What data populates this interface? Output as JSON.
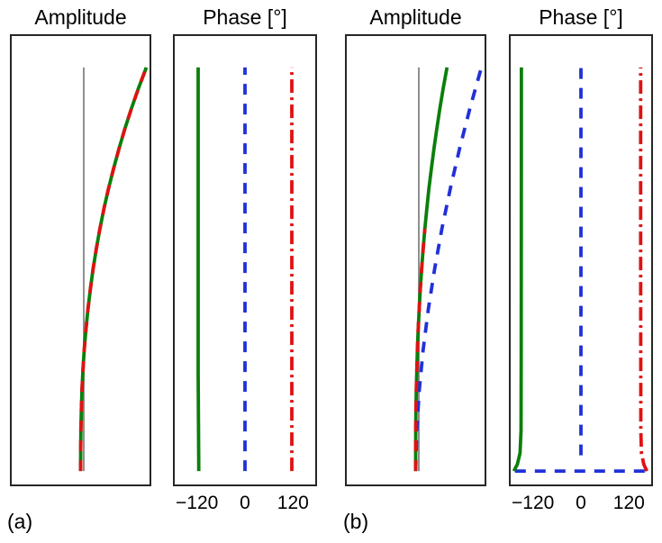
{
  "figure": {
    "background": "#ffffff",
    "subfig_labels": {
      "a": "(a)",
      "b": "(b)"
    },
    "colors": {
      "green": "#0b7f0b",
      "red": "#e01212",
      "blue": "#2030d8",
      "gray": "#8f8f8f",
      "frame": "#262626",
      "text": "#000000"
    }
  },
  "chart_data": [
    {
      "id": "a-amplitude",
      "type": "line",
      "title": "Amplitude",
      "xlabel": "",
      "ylabel": "",
      "xlim": [
        -1.15,
        1.05
      ],
      "ylim": [
        0,
        1
      ],
      "grid": false,
      "ticks": [],
      "series": [
        {
          "name": "reference-line",
          "color": "#8f8f8f",
          "style": "solid",
          "width": 2,
          "points": [
            [
              0,
              0.03
            ],
            [
              0,
              0.93
            ]
          ]
        },
        {
          "name": "series-green-solid",
          "color": "#0b7f0b",
          "style": "solid",
          "width": 3.8,
          "points": [
            [
              -0.05,
              0.03
            ],
            [
              -0.049,
              0.075
            ],
            [
              -0.046,
              0.12
            ],
            [
              -0.039,
              0.165
            ],
            [
              -0.028,
              0.21
            ],
            [
              -0.012,
              0.255
            ],
            [
              0.008,
              0.3
            ],
            [
              0.035,
              0.345
            ],
            [
              0.067,
              0.39
            ],
            [
              0.105,
              0.435
            ],
            [
              0.149,
              0.48
            ],
            [
              0.2,
              0.525
            ],
            [
              0.258,
              0.57
            ],
            [
              0.323,
              0.615
            ],
            [
              0.396,
              0.66
            ],
            [
              0.477,
              0.705
            ],
            [
              0.565,
              0.75
            ],
            [
              0.661,
              0.795
            ],
            [
              0.765,
              0.84
            ],
            [
              0.878,
              0.885
            ],
            [
              1.0,
              0.93
            ]
          ]
        },
        {
          "name": "series-red-dashed",
          "color": "#e01212",
          "style": "dashed",
          "width": 3.8,
          "points": [
            [
              -0.05,
              0.03
            ],
            [
              -0.049,
              0.075
            ],
            [
              -0.046,
              0.12
            ],
            [
              -0.039,
              0.165
            ],
            [
              -0.028,
              0.21
            ],
            [
              -0.012,
              0.255
            ],
            [
              0.008,
              0.3
            ],
            [
              0.035,
              0.345
            ],
            [
              0.067,
              0.39
            ],
            [
              0.105,
              0.435
            ],
            [
              0.149,
              0.48
            ],
            [
              0.2,
              0.525
            ],
            [
              0.258,
              0.57
            ],
            [
              0.323,
              0.615
            ],
            [
              0.396,
              0.66
            ],
            [
              0.477,
              0.705
            ],
            [
              0.565,
              0.75
            ],
            [
              0.661,
              0.795
            ],
            [
              0.765,
              0.84
            ],
            [
              0.878,
              0.885
            ],
            [
              1.0,
              0.93
            ]
          ]
        }
      ]
    },
    {
      "id": "a-phase",
      "type": "line",
      "title": "Phase [°]",
      "xlabel": "",
      "ylabel": "",
      "xlim": [
        -180,
        180
      ],
      "ylim": [
        0,
        1
      ],
      "grid": false,
      "ticks": [
        {
          "value": -120,
          "label": "−120"
        },
        {
          "value": 0,
          "label": "0"
        },
        {
          "value": 120,
          "label": "120"
        }
      ],
      "series": [
        {
          "name": "series-green-solid",
          "color": "#0b7f0b",
          "style": "solid",
          "width": 3.8,
          "points": [
            [
              -118.5,
              0.03
            ],
            [
              -120,
              0.25
            ],
            [
              -120,
              0.93
            ]
          ]
        },
        {
          "name": "series-blue-dashed",
          "color": "#2030d8",
          "style": "dashed",
          "width": 3.8,
          "points": [
            [
              0,
              0.03
            ],
            [
              0,
              0.93
            ]
          ]
        },
        {
          "name": "series-red-dashdot",
          "color": "#e01212",
          "style": "dashdot",
          "width": 3.8,
          "points": [
            [
              120,
              0.03
            ],
            [
              120,
              0.93
            ]
          ]
        }
      ]
    },
    {
      "id": "b-amplitude",
      "type": "line",
      "title": "Amplitude",
      "xlabel": "",
      "ylabel": "",
      "xlim": [
        -1.15,
        1.05
      ],
      "ylim": [
        0,
        1
      ],
      "grid": false,
      "ticks": [],
      "series": [
        {
          "name": "reference-line",
          "color": "#8f8f8f",
          "style": "solid",
          "width": 2,
          "points": [
            [
              0,
              0.03
            ],
            [
              0,
              0.93
            ]
          ]
        },
        {
          "name": "series-blue-dashed",
          "color": "#2030d8",
          "style": "dashed",
          "width": 3.8,
          "points": [
            [
              -0.05,
              0.03
            ],
            [
              -0.033,
              0.12
            ],
            [
              0.008,
              0.21
            ],
            [
              0.07,
              0.3
            ],
            [
              0.152,
              0.39
            ],
            [
              0.252,
              0.48
            ],
            [
              0.369,
              0.57
            ],
            [
              0.503,
              0.66
            ],
            [
              0.653,
              0.75
            ],
            [
              0.819,
              0.84
            ],
            [
              1.0,
              0.93
            ]
          ]
        },
        {
          "name": "series-green-solid",
          "color": "#0b7f0b",
          "style": "solid",
          "width": 3.8,
          "points": [
            [
              -0.05,
              0.03
            ],
            [
              -0.05,
              0.075
            ],
            [
              -0.048,
              0.12
            ],
            [
              -0.045,
              0.165
            ],
            [
              -0.04,
              0.21
            ],
            [
              -0.032,
              0.255
            ],
            [
              -0.022,
              0.3
            ],
            [
              -0.01,
              0.345
            ],
            [
              0.006,
              0.39
            ],
            [
              0.024,
              0.435
            ],
            [
              0.045,
              0.48
            ],
            [
              0.069,
              0.525
            ],
            [
              0.097,
              0.57
            ],
            [
              0.128,
              0.615
            ],
            [
              0.162,
              0.66
            ],
            [
              0.201,
              0.705
            ],
            [
              0.243,
              0.75
            ],
            [
              0.289,
              0.795
            ],
            [
              0.338,
              0.84
            ],
            [
              0.392,
              0.885
            ],
            [
              0.45,
              0.93
            ]
          ]
        },
        {
          "name": "series-red-dashed",
          "color": "#e01212",
          "style": "dashed",
          "width": 3.8,
          "points": [
            [
              -0.05,
              0.03
            ],
            [
              -0.05,
              0.075
            ],
            [
              -0.048,
              0.12
            ],
            [
              -0.045,
              0.165
            ],
            [
              -0.04,
              0.21
            ],
            [
              -0.032,
              0.255
            ],
            [
              -0.022,
              0.3
            ],
            [
              -0.01,
              0.345
            ],
            [
              0.006,
              0.39
            ],
            [
              0.024,
              0.435
            ],
            [
              0.045,
              0.48
            ],
            [
              0.069,
              0.525
            ],
            [
              0.097,
              0.57
            ]
          ]
        }
      ]
    },
    {
      "id": "b-phase",
      "type": "line",
      "title": "Phase [°]",
      "xlabel": "",
      "ylabel": "",
      "xlim": [
        -180,
        180
      ],
      "ylim": [
        0,
        1
      ],
      "grid": false,
      "ticks": [
        {
          "value": -120,
          "label": "−120"
        },
        {
          "value": 0,
          "label": "0"
        },
        {
          "value": 120,
          "label": "120"
        }
      ],
      "series": [
        {
          "name": "series-blue-wrap-dashed",
          "color": "#2030d8",
          "style": "dashed",
          "width": 3.8,
          "points": [
            [
              -169,
              0.03
            ],
            [
              169,
              0.03
            ]
          ]
        },
        {
          "name": "series-blue-dashed",
          "color": "#2030d8",
          "style": "dashed",
          "width": 3.8,
          "points": [
            [
              0,
              0.065
            ],
            [
              0,
              0.93
            ]
          ]
        },
        {
          "name": "series-red-dashdot",
          "color": "#e01212",
          "style": "dashdot",
          "width": 3.8,
          "points": [
            [
              169,
              0.03
            ],
            [
              161,
              0.045
            ],
            [
              155,
              0.07
            ],
            [
              153.5,
              0.12
            ],
            [
              153,
              0.5
            ],
            [
              153,
              0.93
            ]
          ]
        },
        {
          "name": "series-green-solid",
          "color": "#0b7f0b",
          "style": "solid",
          "width": 3.8,
          "points": [
            [
              -172,
              0.03
            ],
            [
              -163,
              0.045
            ],
            [
              -156,
              0.07
            ],
            [
              -153.5,
              0.12
            ],
            [
              -153,
              0.3
            ],
            [
              -152.5,
              0.93
            ]
          ]
        }
      ]
    }
  ]
}
